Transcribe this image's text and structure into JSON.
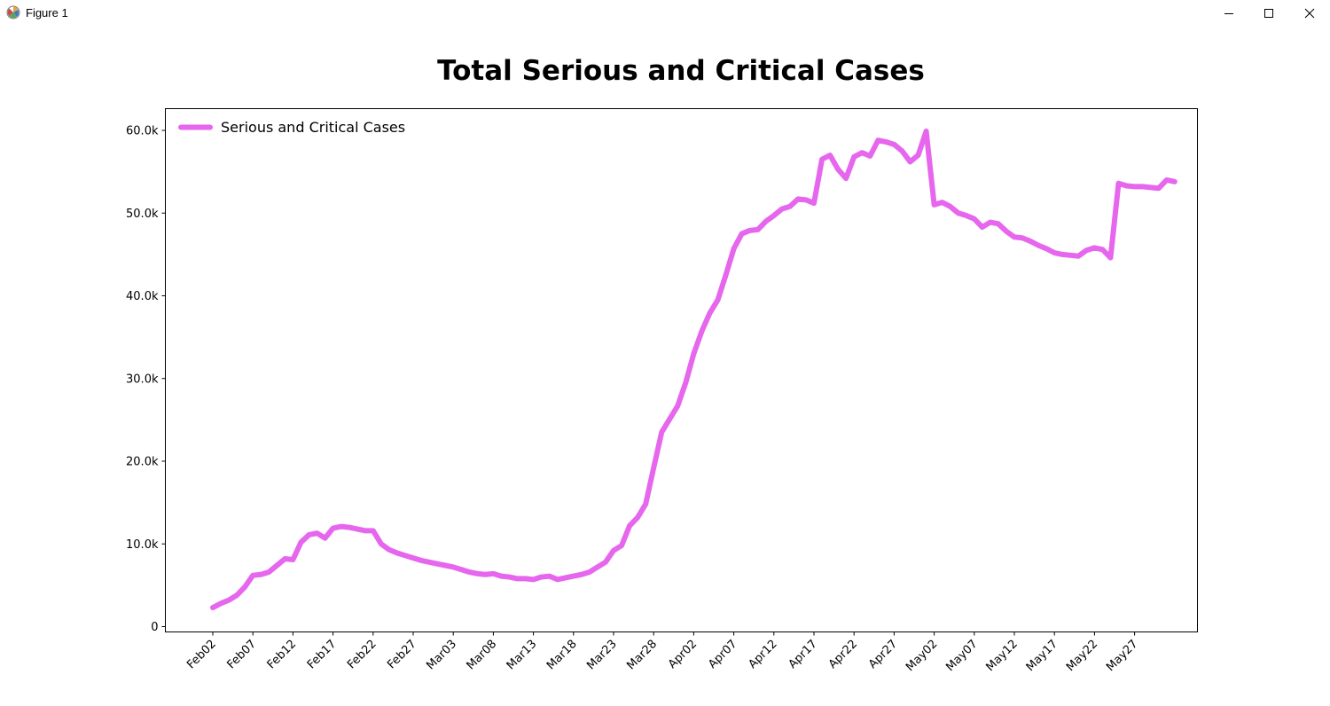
{
  "window": {
    "title": "Figure 1",
    "icons": {
      "app": "matplotlib-logo-icon",
      "minimize": "minimize-icon",
      "maximize": "maximize-icon",
      "close": "close-icon"
    }
  },
  "chart_data": {
    "type": "line",
    "title": "Total Serious and Critical Cases",
    "xlabel": "",
    "ylabel": "",
    "ylim": [
      0,
      60000
    ],
    "y_ticks": [
      0,
      10000,
      20000,
      30000,
      40000,
      50000,
      60000
    ],
    "y_tick_labels": [
      "0",
      "10.0k",
      "20.0k",
      "30.0k",
      "40.0k",
      "50.0k",
      "60.0k"
    ],
    "x_tick_labels": [
      "Feb02",
      "Feb07",
      "Feb12",
      "Feb17",
      "Feb22",
      "Feb27",
      "Mar03",
      "Mar08",
      "Mar13",
      "Mar18",
      "Mar23",
      "Mar28",
      "Apr02",
      "Apr07",
      "Apr12",
      "Apr17",
      "Apr22",
      "Apr27",
      "May02",
      "May07",
      "May12",
      "May17",
      "May22",
      "May27"
    ],
    "x_start": "Feb02",
    "legend": {
      "position": "top-left"
    },
    "grid": false,
    "series": [
      {
        "name": "Serious and Critical Cases",
        "color": "#e666ee",
        "values": [
          2300,
          2800,
          3200,
          3800,
          4800,
          6200,
          6300,
          6600,
          7400,
          8200,
          8100,
          10200,
          11100,
          11300,
          10700,
          11900,
          12100,
          12000,
          11800,
          11600,
          11600,
          10000,
          9300,
          8900,
          8600,
          8300,
          8000,
          7800,
          7600,
          7400,
          7200,
          6900,
          6600,
          6400,
          6300,
          6400,
          6100,
          6000,
          5800,
          5800,
          5700,
          6000,
          6100,
          5700,
          5900,
          6100,
          6300,
          6600,
          7200,
          7800,
          9200,
          9800,
          12200,
          13200,
          14800,
          19200,
          23500,
          25100,
          26700,
          29500,
          33000,
          35700,
          37900,
          39500,
          42500,
          45700,
          47500,
          47900,
          48000,
          49000,
          49700,
          50500,
          50800,
          51700,
          51600,
          51200,
          56500,
          57000,
          55300,
          54200,
          56800,
          57300,
          56900,
          58800,
          58600,
          58300,
          57500,
          56200,
          57000,
          59900,
          51000,
          51300,
          50800,
          50000,
          49700,
          49300,
          48300,
          48900,
          48700,
          47800,
          47100,
          47000,
          46600,
          46100,
          45700,
          45200,
          45000,
          44900,
          44800,
          45500,
          45800,
          45600,
          44600,
          53600,
          53300,
          53200,
          53200,
          53100,
          53000,
          54000,
          53800
        ]
      }
    ]
  }
}
